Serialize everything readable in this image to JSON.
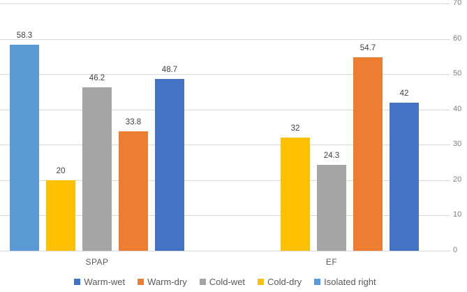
{
  "chart_data": {
    "type": "bar",
    "title": "",
    "xlabel": "",
    "ylabel": "",
    "categories": [
      "SPAP",
      "EF"
    ],
    "series": [
      {
        "name": "Warm-wet",
        "color": "#4472C4",
        "values": [
          48.7,
          42
        ]
      },
      {
        "name": "Warm-dry",
        "color": "#ED7D31",
        "values": [
          33.8,
          54.7
        ]
      },
      {
        "name": "Cold-wet",
        "color": "#A5A5A5",
        "values": [
          46.2,
          24.3
        ]
      },
      {
        "name": "Cold-dry",
        "color": "#FFC000",
        "values": [
          20,
          32
        ]
      },
      {
        "name": "Isolated right",
        "color": "#5B9BD5",
        "values": [
          58.3,
          null
        ]
      }
    ],
    "bar_display_order": [
      "Isolated right",
      "Cold-dry",
      "Cold-wet",
      "Warm-dry",
      "Warm-wet"
    ],
    "ylim": [
      0,
      70
    ],
    "yticks": [
      0,
      10,
      20,
      30,
      40,
      50,
      60,
      70
    ],
    "value_axis_side": "right",
    "grid": true,
    "data_labels": true,
    "legend_position": "bottom"
  },
  "colors": {
    "background": "#FFFFFF",
    "gridline": "#D9D9D9",
    "axis_line": "#D9D9D9",
    "tick_label": "#808080",
    "category_label": "#595959",
    "data_label": "#404040",
    "legend_label": "#595959"
  }
}
